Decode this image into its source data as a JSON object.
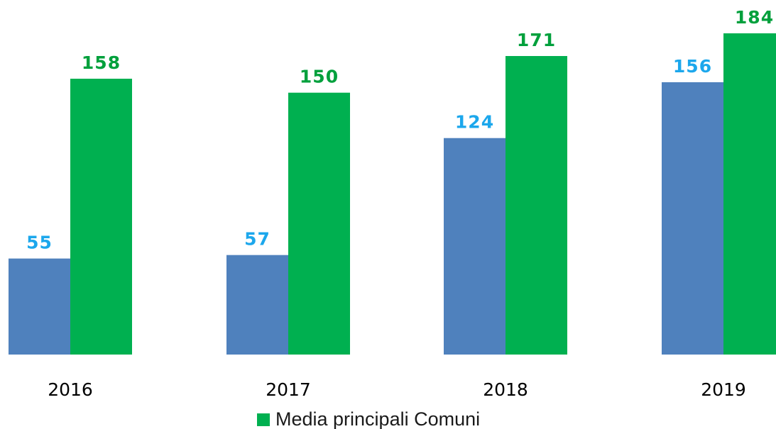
{
  "colors": {
    "series_a_bar": "#4f81bd",
    "series_a_label": "#1ca7ec",
    "series_b_bar": "#00b050",
    "series_b_label": "#00a03c"
  },
  "chart_data": {
    "type": "bar",
    "categories": [
      "2016",
      "2017",
      "2018",
      "2019"
    ],
    "series": [
      {
        "values": [
          55,
          57,
          124,
          156
        ]
      },
      {
        "name": "Media principali Comuni",
        "values": [
          158,
          150,
          171,
          184
        ]
      }
    ],
    "title": "",
    "xlabel": "",
    "ylabel": "",
    "ylim": [
      0,
      184
    ],
    "grid": false,
    "data_labels": true,
    "legend": {
      "position": "bottom",
      "entries": [
        "Media principali Comuni"
      ]
    }
  }
}
